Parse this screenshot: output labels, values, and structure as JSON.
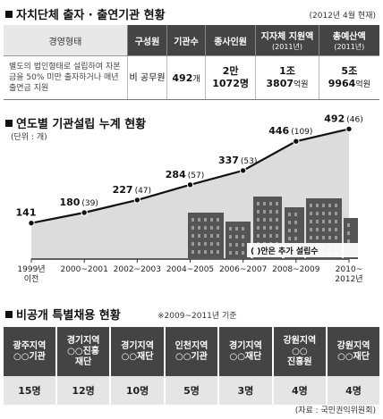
{
  "section1": {
    "title": "자치단체 출자 · 출연기관 현황",
    "note": "(2012년 4월 현재)",
    "headers": [
      {
        "main": "경영형태",
        "sub": ""
      },
      {
        "main": "구성원",
        "sub": ""
      },
      {
        "main": "기관수",
        "sub": ""
      },
      {
        "main": "종사인원",
        "sub": ""
      },
      {
        "main": "지자체 지원액",
        "sub": "(2011년)"
      },
      {
        "main": "총예산액",
        "sub": "(2011년)"
      }
    ],
    "row": {
      "form": "별도의 법인형태로 설립하여 자본금을 50% 미만 출자하거나 매년 출연금 지원",
      "member": "비 공무원",
      "count": "492",
      "count_unit": "개",
      "staff_a": "2만",
      "staff_b": "1072명",
      "support_a": "1조",
      "support_b": "3807",
      "support_unit": "억원",
      "budget_a": "5조",
      "budget_b": "9964",
      "budget_unit": "억원"
    }
  },
  "section2": {
    "title": "연도별 기관설립 누계 현황",
    "unit": "(단위 : 개)",
    "legend": "( )안은 추가 설립수"
  },
  "chart_data": {
    "type": "line",
    "title": "연도별 기관설립 누계 현황",
    "unit": "(단위 : 개)",
    "categories": [
      "1999년 이전",
      "2000~2001",
      "2002~2003",
      "2004~2005",
      "2006~2007",
      "2008~2009",
      "2010~2012년"
    ],
    "tick_lines": [
      [
        "1999년",
        "이전"
      ],
      [
        "2000~2001"
      ],
      [
        "2002~2003"
      ],
      [
        "2004~2005"
      ],
      [
        "2006~2007"
      ],
      [
        "2008~2009"
      ],
      [
        "2010~",
        "2012년"
      ]
    ],
    "series": [
      {
        "values": [
          141,
          180,
          227,
          284,
          337,
          446,
          492
        ]
      }
    ],
    "added": [
      null,
      39,
      47,
      57,
      53,
      109,
      46
    ],
    "ylim": [
      100,
      500
    ],
    "grid": false,
    "legend_note": "( )안은 추가 설립수",
    "colors": {
      "line": "#111111",
      "area": "#dcdcdc",
      "buildings": "#555555"
    }
  },
  "section3": {
    "title": "비공개 특별채용 현황",
    "note": "※2009~2011년 기준",
    "orgs": [
      {
        "l1": "광주지역",
        "l2": "○○기관",
        "l3": "",
        "count": "15명"
      },
      {
        "l1": "경기지역",
        "l2": "○○진흥",
        "l3": "재단",
        "count": "12명"
      },
      {
        "l1": "경기지역",
        "l2": "○○재단",
        "l3": "",
        "count": "10명"
      },
      {
        "l1": "인천지역",
        "l2": "○○기관",
        "l3": "",
        "count": "5명"
      },
      {
        "l1": "경기지역",
        "l2": "○○재단",
        "l3": "",
        "count": "3명"
      },
      {
        "l1": "강원지역",
        "l2": "○○",
        "l3": "진흥원",
        "count": "4명"
      },
      {
        "l1": "강원지역",
        "l2": "○○재단",
        "l3": "",
        "count": "4명"
      }
    ]
  },
  "source": "(자료 : 국민권익위원회)"
}
